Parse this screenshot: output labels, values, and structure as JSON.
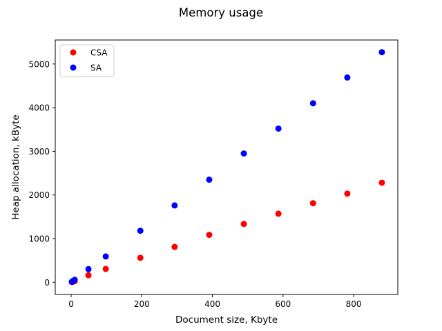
{
  "chart_data": {
    "type": "scatter",
    "title": "Memory usage",
    "xlabel": "Document size, Kbyte",
    "ylabel": "Heap allocation, kByte",
    "xlim": [
      -45,
      925
    ],
    "ylim": [
      -280,
      5550
    ],
    "xticks": [
      0,
      200,
      400,
      600,
      800
    ],
    "yticks": [
      0,
      1000,
      2000,
      3000,
      4000,
      5000
    ],
    "grid": false,
    "legend": "top-left",
    "series": [
      {
        "name": "CSA",
        "color": "#ff0000",
        "x": [
          2,
          5,
          10,
          49,
          98,
          196,
          293,
          391,
          489,
          587,
          685,
          782,
          880
        ],
        "y": [
          5,
          12,
          25,
          160,
          305,
          560,
          810,
          1085,
          1335,
          1570,
          1810,
          2030,
          2280
        ]
      },
      {
        "name": "SA",
        "color": "#0000ff",
        "x": [
          2,
          5,
          10,
          49,
          98,
          196,
          293,
          391,
          489,
          587,
          685,
          782,
          880
        ],
        "y": [
          10,
          30,
          55,
          300,
          590,
          1180,
          1760,
          2350,
          2950,
          3520,
          4100,
          4690,
          5270
        ]
      }
    ]
  }
}
